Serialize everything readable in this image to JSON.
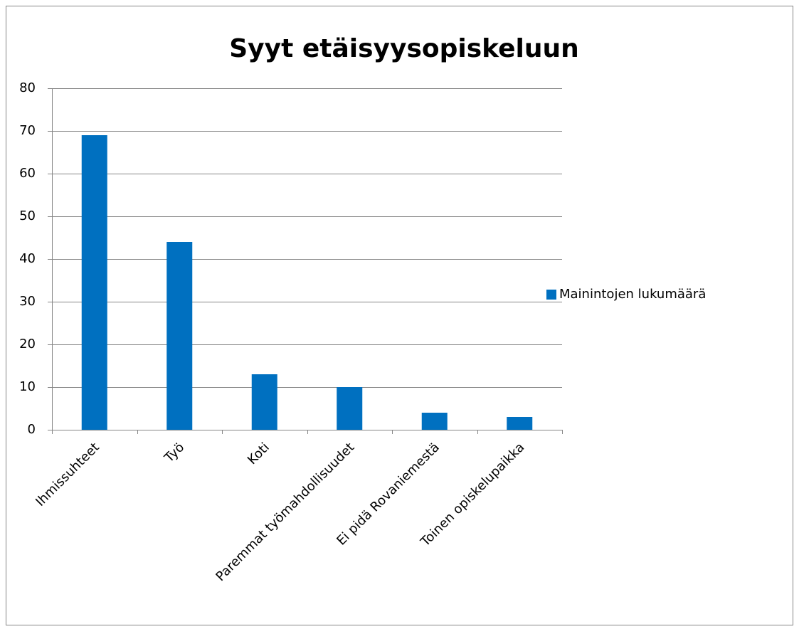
{
  "chart_data": {
    "type": "bar",
    "title": "Syyt etäisyysopiskeluun",
    "categories": [
      "Ihmissuhteet",
      "Työ",
      "Koti",
      "Paremmat työmahdollisuudet",
      "Ei pidä Rovaniemestä",
      "Toinen opiskelupaikka"
    ],
    "series": [
      {
        "name": "Mainintojen lukumäärä",
        "color": "#0070c0",
        "values": [
          69,
          44,
          13,
          10,
          4,
          3
        ]
      }
    ],
    "ylim": [
      0,
      80
    ],
    "yticks": [
      0,
      10,
      20,
      30,
      40,
      50,
      60,
      70,
      80
    ],
    "grid": true,
    "legend": "right"
  }
}
